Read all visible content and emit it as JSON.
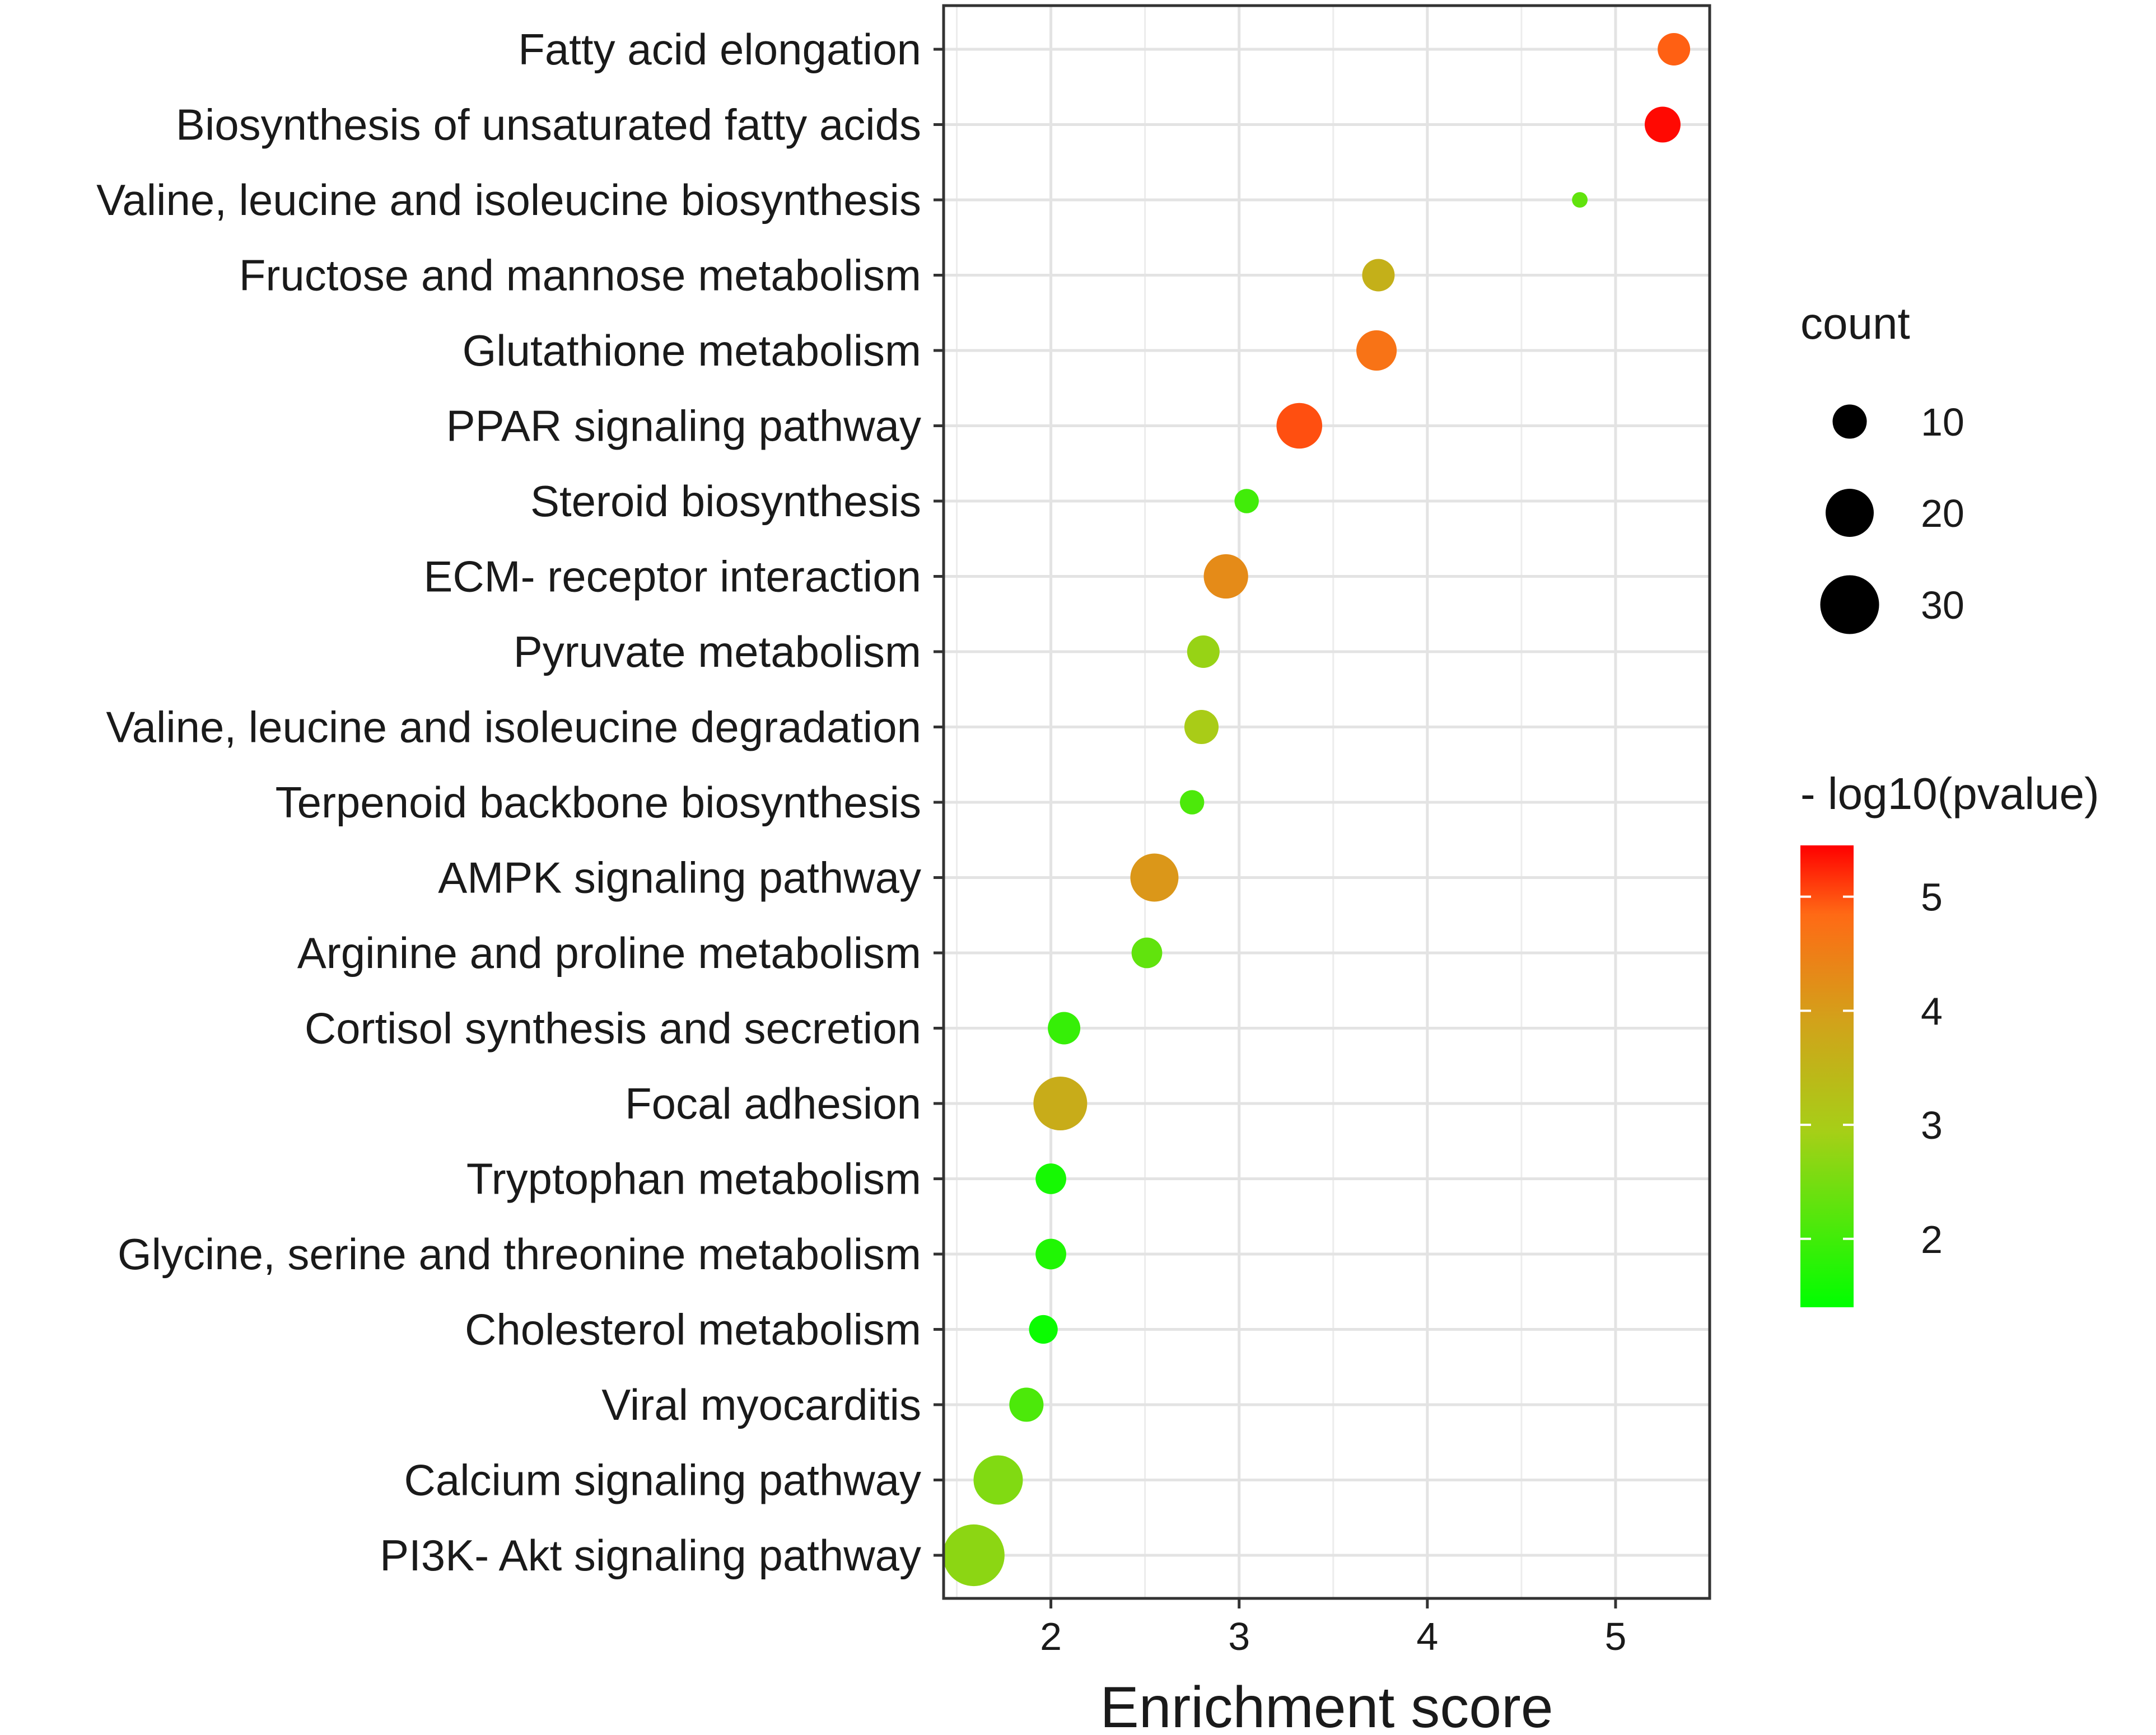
{
  "chart_data": {
    "type": "scatter",
    "title": "",
    "xlabel": "Enrichment score",
    "ylabel": "",
    "xlim": [
      1.43,
      5.5
    ],
    "xticks": [
      2,
      3,
      4,
      5
    ],
    "grid": true,
    "categories": [
      "Fatty acid elongation",
      "Biosynthesis of unsaturated fatty acids",
      "Valine, leucine and isoleucine biosynthesis",
      "Fructose and mannose metabolism",
      "Glutathione metabolism",
      "PPAR signaling pathway",
      "Steroid biosynthesis",
      "ECM- receptor interaction",
      "Pyruvate metabolism",
      "Valine, leucine and isoleucine degradation",
      "Terpenoid backbone biosynthesis",
      "AMPK signaling pathway",
      "Arginine and proline metabolism",
      "Cortisol synthesis and secretion",
      "Focal adhesion",
      "Tryptophan metabolism",
      "Glycine, serine and threonine metabolism",
      "Cholesterol metabolism",
      "Viral myocarditis",
      "Calcium signaling pathway",
      "PI3K- Akt signaling pathway"
    ],
    "points": [
      {
        "term": "Fatty acid elongation",
        "enrichment_score": 5.31,
        "count": 9,
        "neg_log10_pvalue": 4.9
      },
      {
        "term": "Biosynthesis of unsaturated fatty acids",
        "enrichment_score": 5.25,
        "count": 11,
        "neg_log10_pvalue": 5.4
      },
      {
        "term": "Valine, leucine and isoleucine biosynthesis",
        "enrichment_score": 4.81,
        "count": 2,
        "neg_log10_pvalue": 2.3
      },
      {
        "term": "Fructose and mannose metabolism",
        "enrichment_score": 3.74,
        "count": 9,
        "neg_log10_pvalue": 3.6
      },
      {
        "term": "Glutathione metabolism",
        "enrichment_score": 3.73,
        "count": 14,
        "neg_log10_pvalue": 4.7
      },
      {
        "term": "PPAR signaling pathway",
        "enrichment_score": 3.32,
        "count": 18,
        "neg_log10_pvalue": 5.0
      },
      {
        "term": "Steroid biosynthesis",
        "enrichment_score": 3.04,
        "count": 5,
        "neg_log10_pvalue": 2.0
      },
      {
        "term": "ECM- receptor interaction",
        "enrichment_score": 2.93,
        "count": 17,
        "neg_log10_pvalue": 4.3
      },
      {
        "term": "Pyruvate metabolism",
        "enrichment_score": 2.81,
        "count": 9,
        "neg_log10_pvalue": 2.8
      },
      {
        "term": "Valine, leucine and isoleucine degradation",
        "enrichment_score": 2.8,
        "count": 10,
        "neg_log10_pvalue": 3.0
      },
      {
        "term": "Terpenoid backbone biosynthesis",
        "enrichment_score": 2.75,
        "count": 5,
        "neg_log10_pvalue": 2.1
      },
      {
        "term": "AMPK signaling pathway",
        "enrichment_score": 2.55,
        "count": 20,
        "neg_log10_pvalue": 4.1
      },
      {
        "term": "Arginine and proline metabolism",
        "enrichment_score": 2.51,
        "count": 8,
        "neg_log10_pvalue": 2.3
      },
      {
        "term": "Cortisol synthesis and secretion",
        "enrichment_score": 2.07,
        "count": 9,
        "neg_log10_pvalue": 1.9
      },
      {
        "term": "Focal adhesion",
        "enrichment_score": 2.05,
        "count": 25,
        "neg_log10_pvalue": 3.7
      },
      {
        "term": "Tryptophan metabolism",
        "enrichment_score": 2.0,
        "count": 8,
        "neg_log10_pvalue": 1.6
      },
      {
        "term": "Glycine, serine and threonine metabolism",
        "enrichment_score": 2.0,
        "count": 8,
        "neg_log10_pvalue": 1.7
      },
      {
        "term": "Cholesterol metabolism",
        "enrichment_score": 1.96,
        "count": 7,
        "neg_log10_pvalue": 1.5
      },
      {
        "term": "Viral myocarditis",
        "enrichment_score": 1.87,
        "count": 10,
        "neg_log10_pvalue": 2.1
      },
      {
        "term": "Calcium signaling pathway",
        "enrichment_score": 1.72,
        "count": 21,
        "neg_log10_pvalue": 2.6
      },
      {
        "term": "PI3K- Akt signaling pathway",
        "enrichment_score": 1.59,
        "count": 33,
        "neg_log10_pvalue": 2.7
      }
    ],
    "size_legend": {
      "title": "count",
      "breaks": [
        10,
        20,
        30
      ],
      "labels": [
        "10",
        "20",
        "30"
      ]
    },
    "color_legend": {
      "title": "- log10(pvalue)",
      "range": [
        1.4,
        5.45
      ],
      "breaks": [
        2,
        3,
        4,
        5
      ],
      "labels": [
        "2",
        "3",
        "4",
        "5"
      ],
      "low_color": "#00ff00",
      "high_color": "#ff0000"
    },
    "legend_position": "right"
  }
}
